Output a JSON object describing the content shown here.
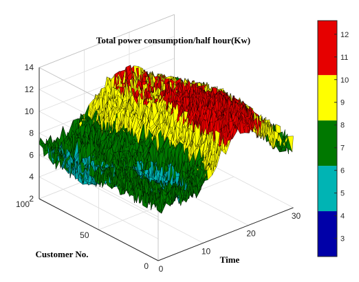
{
  "chart_data": {
    "type": "surface",
    "title": "Total power consumption/half hour(Kw)",
    "xlabel": "Time",
    "ylabel": "Customer No.",
    "zlabel": "",
    "xlim": [
      0,
      30
    ],
    "ylim": [
      0,
      100
    ],
    "zlim": [
      2,
      14
    ],
    "xticks": [
      "0",
      "10",
      "20",
      "30"
    ],
    "yticks": [
      "0",
      "50",
      "100"
    ],
    "zticks": [
      "2",
      "4",
      "6",
      "8",
      "10",
      "12",
      "14"
    ],
    "colorbar": {
      "range": [
        2.2,
        12.6
      ],
      "ticks": [
        "3",
        "4",
        "5",
        "6",
        "7",
        "8",
        "9",
        "10",
        "11",
        "12"
      ],
      "bands": [
        {
          "from": 2.2,
          "to": 4.2,
          "color": "#0000a8"
        },
        {
          "from": 4.2,
          "to": 6.2,
          "color": "#00b4b4"
        },
        {
          "from": 6.2,
          "to": 8.2,
          "color": "#007800"
        },
        {
          "from": 8.2,
          "to": 10.2,
          "color": "#ffff00"
        },
        {
          "from": 10.2,
          "to": 12.6,
          "color": "#e60000"
        }
      ]
    },
    "grid": true,
    "colormap": "banded",
    "time_steps": 30,
    "customers": 100,
    "value_range": [
      2.2,
      13.5
    ]
  }
}
